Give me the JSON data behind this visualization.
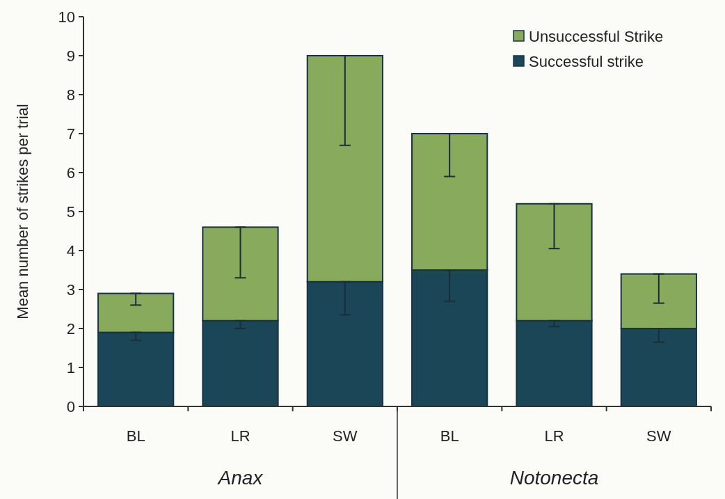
{
  "chart_data": {
    "type": "bar",
    "stacked": true,
    "ylabel": "Mean number of strikes per trial",
    "categories": [
      "BL",
      "LR",
      "SW",
      "BL",
      "LR",
      "SW"
    ],
    "series": [
      {
        "name": "Successful strike",
        "color": "#1b4658",
        "values": [
          1.9,
          2.2,
          3.2,
          3.5,
          2.2,
          2.0
        ],
        "errors": [
          [
            1.7,
            1.9
          ],
          [
            2.0,
            2.2
          ],
          [
            2.35,
            3.2
          ],
          [
            2.7,
            3.5
          ],
          [
            2.05,
            2.2
          ],
          [
            1.65,
            2.0
          ]
        ]
      },
      {
        "name": "Unsuccessful Strike",
        "color": "#88aa5c",
        "values": [
          1.0,
          2.4,
          5.8,
          3.5,
          3.0,
          1.4
        ],
        "errors": [
          [
            2.6,
            2.9
          ],
          [
            3.3,
            4.6
          ],
          [
            6.7,
            9.0
          ],
          [
            5.9,
            7.0
          ],
          [
            4.05,
            5.2
          ],
          [
            2.65,
            3.4
          ]
        ]
      }
    ],
    "ylim": [
      0,
      10
    ],
    "yticks": [
      0,
      1,
      2,
      3,
      4,
      5,
      6,
      7,
      8,
      9,
      10
    ],
    "grid": false,
    "legend": "top right",
    "annotations": [
      "Anax",
      "Notonecta"
    ]
  }
}
